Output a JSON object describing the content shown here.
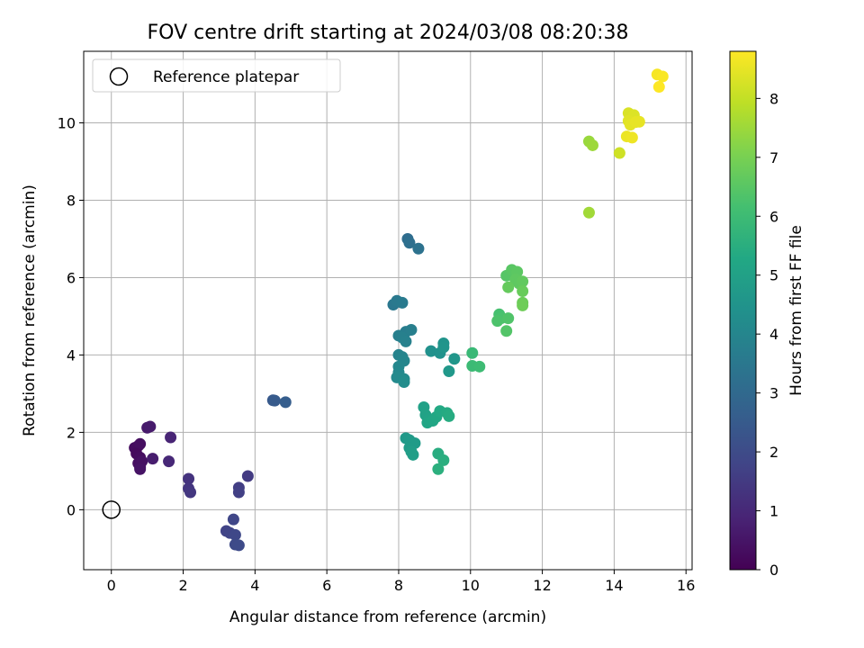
{
  "chart_data": {
    "type": "scatter",
    "title": "FOV centre drift starting at 2024/03/08 08:20:38",
    "xlabel": "Angular distance from reference (arcmin)",
    "ylabel": "Rotation from reference (arcmin)",
    "xlim": [
      -0.77,
      16.17
    ],
    "ylim": [
      -1.55,
      11.85
    ],
    "xticks": [
      0,
      2,
      4,
      6,
      8,
      10,
      12,
      14,
      16
    ],
    "yticks": [
      0,
      2,
      4,
      6,
      8,
      10
    ],
    "grid": true,
    "legend": {
      "placement": "top-left",
      "entries": [
        "Reference platepar"
      ]
    },
    "reference_point": {
      "x": 0,
      "y": 0
    },
    "colorbar": {
      "label": "Hours from first FF file",
      "range": [
        0,
        8.8
      ],
      "ticks": [
        0,
        1,
        2,
        3,
        4,
        5,
        6,
        7,
        8
      ],
      "colormap": "viridis"
    },
    "series": [
      {
        "points": [
          {
            "x": 0.75,
            "y": 1.65,
            "c": 0.2
          },
          {
            "x": 0.65,
            "y": 1.6,
            "c": 0.3
          },
          {
            "x": 0.8,
            "y": 1.7,
            "c": 0.35
          },
          {
            "x": 0.7,
            "y": 1.45,
            "c": 0.25
          },
          {
            "x": 0.8,
            "y": 1.35,
            "c": 0.3
          },
          {
            "x": 0.75,
            "y": 1.2,
            "c": 0.35
          },
          {
            "x": 0.8,
            "y": 1.1,
            "c": 0.4
          },
          {
            "x": 0.85,
            "y": 1.25,
            "c": 0.4
          },
          {
            "x": 0.8,
            "y": 1.05,
            "c": 0.45
          },
          {
            "x": 1.0,
            "y": 2.12,
            "c": 0.6
          },
          {
            "x": 1.08,
            "y": 2.15,
            "c": 0.65
          },
          {
            "x": 1.15,
            "y": 1.32,
            "c": 0.7
          },
          {
            "x": 1.65,
            "y": 1.87,
            "c": 0.9
          },
          {
            "x": 1.6,
            "y": 1.25,
            "c": 1.0
          },
          {
            "x": 2.15,
            "y": 0.8,
            "c": 1.3
          },
          {
            "x": 2.15,
            "y": 0.55,
            "c": 1.35
          },
          {
            "x": 2.2,
            "y": 0.45,
            "c": 1.4
          },
          {
            "x": 3.8,
            "y": 0.87,
            "c": 1.5
          },
          {
            "x": 3.55,
            "y": 0.57,
            "c": 1.6
          },
          {
            "x": 3.55,
            "y": 0.45,
            "c": 1.65
          },
          {
            "x": 3.2,
            "y": -0.55,
            "c": 1.75
          },
          {
            "x": 3.3,
            "y": -0.6,
            "c": 1.8
          },
          {
            "x": 3.4,
            "y": -0.25,
            "c": 1.85
          },
          {
            "x": 3.45,
            "y": -0.65,
            "c": 1.9
          },
          {
            "x": 3.45,
            "y": -0.9,
            "c": 1.95
          },
          {
            "x": 3.55,
            "y": -0.92,
            "c": 2.0
          },
          {
            "x": 4.5,
            "y": 2.83,
            "c": 2.45
          },
          {
            "x": 4.55,
            "y": 2.82,
            "c": 2.5
          },
          {
            "x": 4.85,
            "y": 2.78,
            "c": 2.6
          },
          {
            "x": 8.25,
            "y": 7.0,
            "c": 3.15
          },
          {
            "x": 8.3,
            "y": 6.9,
            "c": 3.2
          },
          {
            "x": 8.55,
            "y": 6.75,
            "c": 3.3
          },
          {
            "x": 7.85,
            "y": 5.3,
            "c": 3.5
          },
          {
            "x": 7.95,
            "y": 5.4,
            "c": 3.55
          },
          {
            "x": 8.1,
            "y": 5.35,
            "c": 3.6
          },
          {
            "x": 8.2,
            "y": 4.6,
            "c": 3.7
          },
          {
            "x": 8.35,
            "y": 4.65,
            "c": 3.75
          },
          {
            "x": 8.0,
            "y": 4.5,
            "c": 3.75
          },
          {
            "x": 8.1,
            "y": 4.45,
            "c": 3.8
          },
          {
            "x": 8.2,
            "y": 4.35,
            "c": 3.85
          },
          {
            "x": 8.0,
            "y": 4.0,
            "c": 3.9
          },
          {
            "x": 8.1,
            "y": 3.95,
            "c": 3.95
          },
          {
            "x": 8.15,
            "y": 3.85,
            "c": 4.0
          },
          {
            "x": 8.0,
            "y": 3.7,
            "c": 4.05
          },
          {
            "x": 8.0,
            "y": 3.55,
            "c": 4.1
          },
          {
            "x": 7.95,
            "y": 3.42,
            "c": 4.15
          },
          {
            "x": 8.15,
            "y": 3.38,
            "c": 4.2
          },
          {
            "x": 8.15,
            "y": 3.3,
            "c": 4.25
          },
          {
            "x": 8.9,
            "y": 4.1,
            "c": 4.4
          },
          {
            "x": 9.15,
            "y": 4.05,
            "c": 4.45
          },
          {
            "x": 9.25,
            "y": 4.3,
            "c": 4.5
          },
          {
            "x": 9.25,
            "y": 4.2,
            "c": 4.55
          },
          {
            "x": 9.55,
            "y": 3.9,
            "c": 4.6
          },
          {
            "x": 9.4,
            "y": 3.58,
            "c": 4.65
          },
          {
            "x": 8.2,
            "y": 1.85,
            "c": 4.7
          },
          {
            "x": 8.3,
            "y": 1.8,
            "c": 4.75
          },
          {
            "x": 8.45,
            "y": 1.72,
            "c": 4.8
          },
          {
            "x": 8.3,
            "y": 1.6,
            "c": 4.8
          },
          {
            "x": 8.35,
            "y": 1.5,
            "c": 4.85
          },
          {
            "x": 8.4,
            "y": 1.42,
            "c": 4.9
          },
          {
            "x": 8.7,
            "y": 2.65,
            "c": 5.0
          },
          {
            "x": 8.75,
            "y": 2.45,
            "c": 5.05
          },
          {
            "x": 8.85,
            "y": 2.35,
            "c": 5.1
          },
          {
            "x": 8.8,
            "y": 2.25,
            "c": 5.15
          },
          {
            "x": 8.95,
            "y": 2.3,
            "c": 5.2
          },
          {
            "x": 9.05,
            "y": 2.4,
            "c": 5.25
          },
          {
            "x": 9.15,
            "y": 2.55,
            "c": 5.3
          },
          {
            "x": 9.35,
            "y": 2.5,
            "c": 5.35
          },
          {
            "x": 9.4,
            "y": 2.42,
            "c": 5.4
          },
          {
            "x": 9.1,
            "y": 1.45,
            "c": 5.45
          },
          {
            "x": 9.25,
            "y": 1.28,
            "c": 5.5
          },
          {
            "x": 9.1,
            "y": 1.05,
            "c": 5.55
          },
          {
            "x": 10.05,
            "y": 4.05,
            "c": 5.9
          },
          {
            "x": 10.05,
            "y": 3.72,
            "c": 5.95
          },
          {
            "x": 10.25,
            "y": 3.7,
            "c": 6.0
          },
          {
            "x": 10.8,
            "y": 5.05,
            "c": 6.2
          },
          {
            "x": 10.85,
            "y": 4.95,
            "c": 6.25
          },
          {
            "x": 10.75,
            "y": 4.88,
            "c": 6.3
          },
          {
            "x": 11.05,
            "y": 4.95,
            "c": 6.35
          },
          {
            "x": 11.0,
            "y": 4.62,
            "c": 6.4
          },
          {
            "x": 11.0,
            "y": 6.05,
            "c": 6.45
          },
          {
            "x": 11.15,
            "y": 6.2,
            "c": 6.5
          },
          {
            "x": 11.3,
            "y": 6.15,
            "c": 6.55
          },
          {
            "x": 11.25,
            "y": 5.95,
            "c": 6.6
          },
          {
            "x": 11.35,
            "y": 5.85,
            "c": 6.6
          },
          {
            "x": 11.45,
            "y": 5.9,
            "c": 6.65
          },
          {
            "x": 11.05,
            "y": 5.75,
            "c": 6.7
          },
          {
            "x": 11.45,
            "y": 5.65,
            "c": 6.75
          },
          {
            "x": 11.45,
            "y": 5.35,
            "c": 6.8
          },
          {
            "x": 11.45,
            "y": 5.28,
            "c": 6.85
          },
          {
            "x": 13.3,
            "y": 9.52,
            "c": 7.45
          },
          {
            "x": 13.4,
            "y": 9.42,
            "c": 7.5
          },
          {
            "x": 13.3,
            "y": 7.68,
            "c": 7.55
          },
          {
            "x": 14.15,
            "y": 9.22,
            "c": 8.15
          },
          {
            "x": 14.4,
            "y": 10.25,
            "c": 8.3
          },
          {
            "x": 14.55,
            "y": 10.2,
            "c": 8.35
          },
          {
            "x": 14.4,
            "y": 10.05,
            "c": 8.4
          },
          {
            "x": 14.45,
            "y": 9.95,
            "c": 8.45
          },
          {
            "x": 14.6,
            "y": 10.02,
            "c": 8.5
          },
          {
            "x": 14.7,
            "y": 10.03,
            "c": 8.5
          },
          {
            "x": 14.35,
            "y": 9.65,
            "c": 8.55
          },
          {
            "x": 14.5,
            "y": 9.62,
            "c": 8.6
          },
          {
            "x": 15.2,
            "y": 11.25,
            "c": 8.7
          },
          {
            "x": 15.35,
            "y": 11.2,
            "c": 8.75
          },
          {
            "x": 15.25,
            "y": 10.93,
            "c": 8.8
          }
        ]
      }
    ]
  }
}
